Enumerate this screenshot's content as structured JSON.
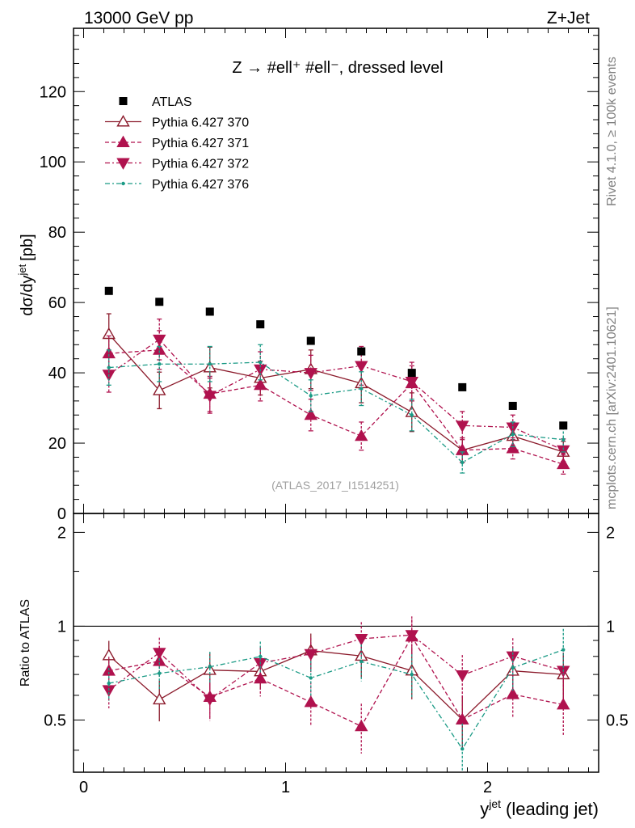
{
  "header": {
    "left": "13000 GeV pp",
    "right": "Z+Jet"
  },
  "side_labels": {
    "rivet": "Rivet 4.1.0, ≥ 100k events",
    "mcplots": "mcplots.cern.ch [arXiv:2401.10621]"
  },
  "analysis_id": "(ATLAS_2017_I1514251)",
  "chart_data": {
    "type": "scatter",
    "title": "Z → #ell⁺ #ell⁻, dressed level",
    "xlabel": "y^jet (leading jet)",
    "xlabel_main": "y",
    "xlabel_sup": "jet",
    "xlabel_tail": "(leading jet)",
    "ylabel": "dσ/dy^jet [pb]",
    "ylabel_main": "dσ/dy",
    "ylabel_sup": "jet",
    "ylabel_tail": "[pb]",
    "ratio_ylabel": "Ratio to ATLAS",
    "xlim": [
      -0.05,
      2.55
    ],
    "ylim": [
      0,
      138
    ],
    "ratio_ylim": [
      0.34,
      2.3
    ],
    "x_ticks": [
      {
        "v": 0,
        "label": "0"
      },
      {
        "v": 1,
        "label": "1"
      },
      {
        "v": 2,
        "label": "2"
      }
    ],
    "y_ticks": [
      {
        "v": 0,
        "label": "0"
      },
      {
        "v": 20,
        "label": "20"
      },
      {
        "v": 40,
        "label": "40"
      },
      {
        "v": 60,
        "label": "60"
      },
      {
        "v": 80,
        "label": "80"
      },
      {
        "v": 100,
        "label": "100"
      },
      {
        "v": 120,
        "label": "120"
      }
    ],
    "ratio_ticks": [
      {
        "v": 0.5,
        "label": "0.5"
      },
      {
        "v": 1,
        "label": "1"
      },
      {
        "v": 2,
        "label": "2"
      }
    ],
    "x": [
      0.125,
      0.375,
      0.625,
      0.875,
      1.125,
      1.375,
      1.625,
      1.875,
      2.125,
      2.375
    ],
    "bin_edges": [
      0,
      0.25,
      0.5,
      0.75,
      1.0,
      1.25,
      1.5,
      1.75,
      2.0,
      2.25,
      2.5
    ],
    "data": {
      "name": "ATLAS",
      "values": [
        63.3,
        60.2,
        57.4,
        53.8,
        49.1,
        46.1,
        40.0,
        35.9,
        30.6,
        25.0
      ]
    },
    "series": [
      {
        "name": "Pythia 6.427 370",
        "color": "#8b1a2b",
        "marker": "triangle-up-open",
        "dash": "",
        "values": [
          51.0,
          35.0,
          41.5,
          38.5,
          41.0,
          37.0,
          28.8,
          18.0,
          22.0,
          17.5
        ],
        "errors": [
          5.8,
          5.2,
          5.8,
          4.8,
          5.5,
          5.5,
          5.5,
          3.5,
          3.5,
          3.0
        ]
      },
      {
        "name": "Pythia 6.427 371",
        "color": "#b0124e",
        "marker": "triangle-up",
        "dash": "5,3",
        "values": [
          45.5,
          46.5,
          34.0,
          36.5,
          28.0,
          22.0,
          37.0,
          18.0,
          18.5,
          14.0
        ],
        "errors": [
          5.0,
          5.5,
          5.0,
          4.5,
          4.5,
          4.0,
          5.0,
          3.5,
          3.0,
          2.8
        ]
      },
      {
        "name": "Pythia 6.427 372",
        "color": "#b0124e",
        "marker": "triangle-down",
        "dash": "6,3,2,3",
        "values": [
          39.5,
          49.5,
          33.5,
          41.0,
          40.0,
          42.0,
          37.5,
          25.0,
          24.5,
          18.0
        ],
        "errors": [
          5.0,
          5.8,
          5.0,
          5.0,
          5.0,
          5.5,
          5.5,
          4.0,
          3.5,
          3.2
        ]
      },
      {
        "name": "Pythia 6.427 376",
        "color": "#1a9a85",
        "marker": "dot",
        "dash": "6,3,2,3",
        "values": [
          41.5,
          42.5,
          42.5,
          43.0,
          33.5,
          35.5,
          28.0,
          14.5,
          22.5,
          21.0
        ],
        "errors": [
          5.0,
          5.0,
          5.0,
          5.0,
          4.5,
          4.8,
          4.5,
          3.0,
          3.5,
          3.5
        ]
      }
    ]
  }
}
